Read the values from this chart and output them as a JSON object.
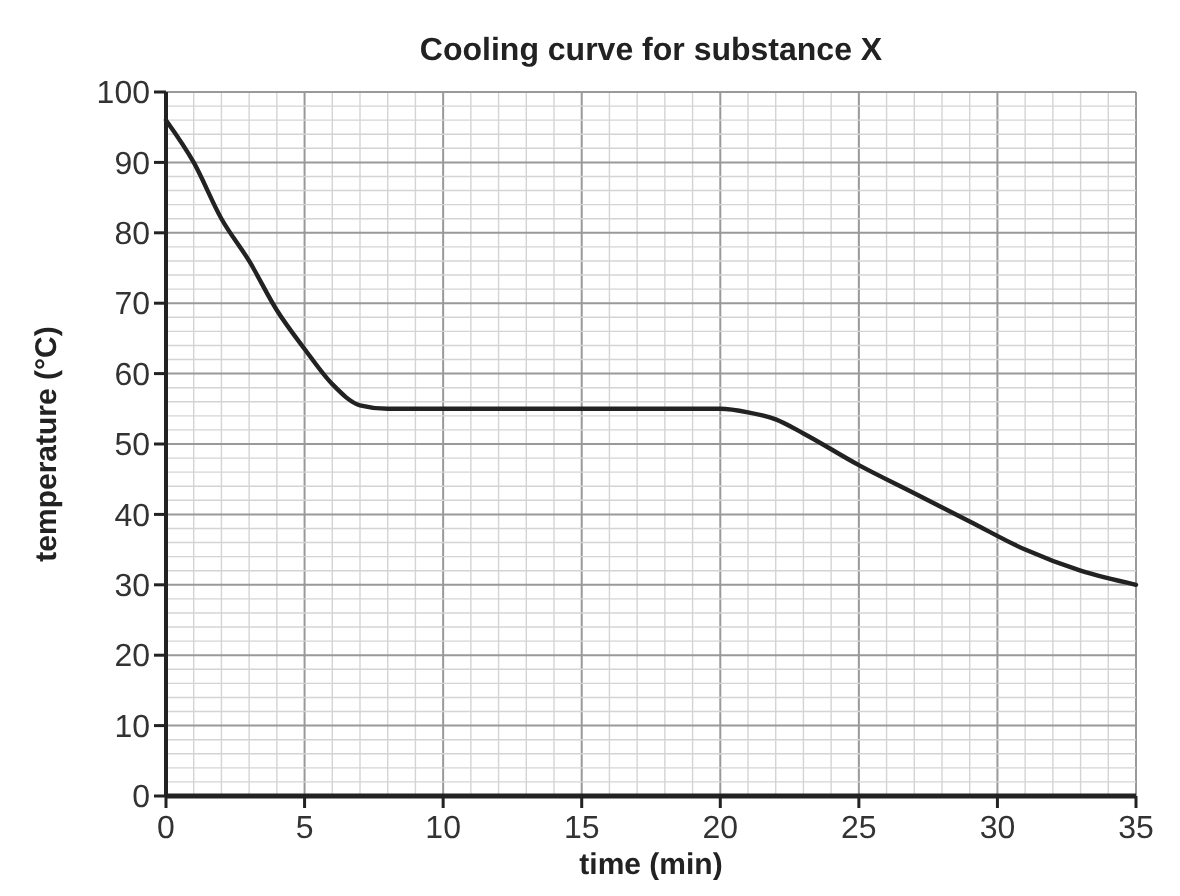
{
  "chart_data": {
    "type": "line",
    "title": "Cooling curve for substance X",
    "xlabel": "time (min)",
    "ylabel": "temperature (°C)",
    "x": [
      0,
      1,
      2,
      3,
      4,
      5,
      6,
      7,
      8,
      10,
      15,
      20,
      21,
      22,
      23,
      25,
      27,
      29,
      31,
      33,
      35
    ],
    "series": [
      {
        "color": "#222222",
        "values": [
          96,
          90,
          82,
          76,
          69,
          63.5,
          58.5,
          55.5,
          55,
          55,
          55,
          55,
          54.5,
          53.5,
          51.5,
          47,
          43,
          39,
          35,
          32,
          30
        ]
      }
    ],
    "xlim": [
      0,
      35
    ],
    "xticks": [
      0,
      5,
      10,
      15,
      20,
      25,
      30,
      35
    ],
    "ylim": [
      0,
      100
    ],
    "yticks": [
      0,
      10,
      20,
      30,
      40,
      50,
      60,
      70,
      80,
      90,
      100
    ],
    "grid": true,
    "marker": "none",
    "line_style": "solid"
  }
}
